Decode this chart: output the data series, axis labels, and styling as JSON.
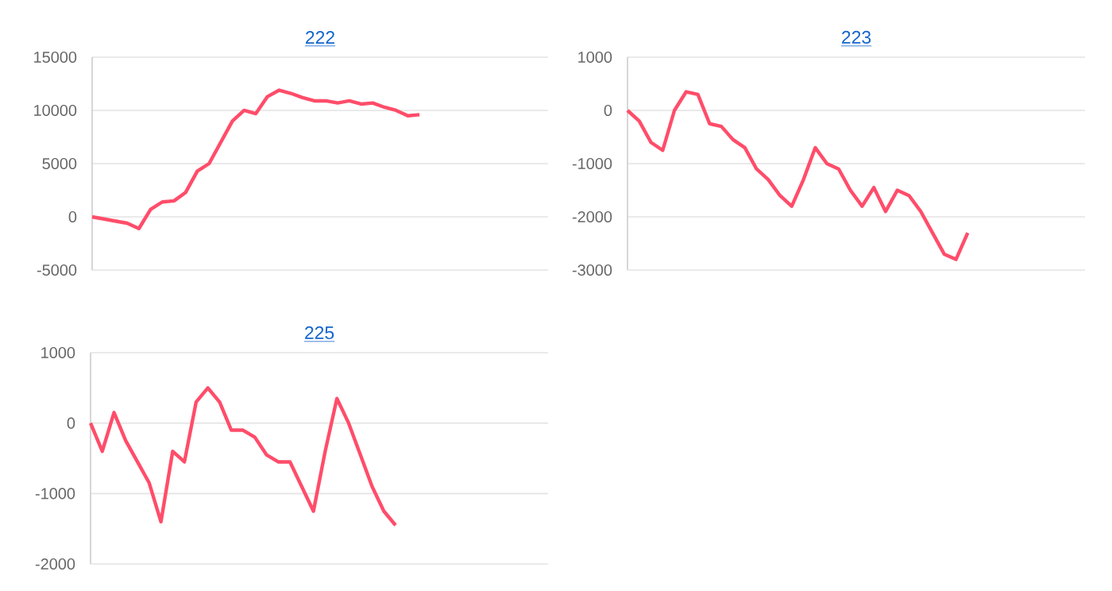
{
  "chart_data": [
    {
      "type": "line",
      "title": "222",
      "grid": "y",
      "tick_labels": "y",
      "ylim": [
        -5000,
        15000
      ],
      "yticks": [
        -5000,
        0,
        5000,
        10000,
        15000
      ],
      "categories": [
        null,
        null,
        null,
        null,
        null,
        null,
        null,
        null,
        null,
        null,
        null,
        null,
        null,
        null,
        null,
        null,
        null,
        null,
        null,
        null,
        null,
        null,
        null,
        null,
        null,
        null,
        null,
        null,
        null,
        null,
        null,
        null,
        null,
        null,
        null,
        null,
        null,
        null,
        null,
        null
      ],
      "series": [
        {
          "color": "#ff4d6a",
          "values": [
            0,
            -200,
            -400,
            -600,
            -1100,
            700,
            1400,
            1500,
            2300,
            4300,
            5000,
            7000,
            9000,
            10000,
            9700,
            11300,
            11900,
            11600,
            11200,
            10900,
            10900,
            10700,
            10900,
            10600,
            10700,
            10300,
            10000,
            9500,
            9600,
            null,
            null,
            null,
            null,
            null,
            null,
            null,
            null,
            null,
            null,
            null
          ]
        }
      ]
    },
    {
      "type": "line",
      "title": "223",
      "grid": "y",
      "tick_labels": "y",
      "ylim": [
        -3000,
        1000
      ],
      "yticks": [
        -3000,
        -2000,
        -1000,
        0,
        1000
      ],
      "categories": [
        null,
        null,
        null,
        null,
        null,
        null,
        null,
        null,
        null,
        null,
        null,
        null,
        null,
        null,
        null,
        null,
        null,
        null,
        null,
        null,
        null,
        null,
        null,
        null,
        null,
        null,
        null,
        null,
        null,
        null,
        null,
        null,
        null,
        null,
        null,
        null,
        null,
        null,
        null,
        null
      ],
      "series": [
        {
          "color": "#ff4d6a",
          "values": [
            0,
            -200,
            -600,
            -750,
            0,
            350,
            300,
            -250,
            -300,
            -550,
            -700,
            -1100,
            -1300,
            -1600,
            -1800,
            -1300,
            -700,
            -1000,
            -1100,
            -1500,
            -1800,
            -1450,
            -1900,
            -1500,
            -1600,
            -1900,
            -2300,
            -2700,
            -2800,
            -2300,
            null,
            null,
            null,
            null,
            null,
            null,
            null,
            null,
            null,
            null
          ]
        }
      ]
    },
    {
      "type": "line",
      "title": "225",
      "grid": "y",
      "tick_labels": "y",
      "ylim": [
        -2000,
        1000
      ],
      "yticks": [
        -2000,
        -1000,
        0,
        1000
      ],
      "categories": [
        null,
        null,
        null,
        null,
        null,
        null,
        null,
        null,
        null,
        null,
        null,
        null,
        null,
        null,
        null,
        null,
        null,
        null,
        null,
        null,
        null,
        null,
        null,
        null,
        null,
        null,
        null,
        null,
        null,
        null,
        null,
        null,
        null,
        null,
        null,
        null,
        null,
        null,
        null,
        null
      ],
      "series": [
        {
          "color": "#ff4d6a",
          "values": [
            0,
            -400,
            150,
            -250,
            -550,
            -850,
            -1400,
            -400,
            -550,
            300,
            500,
            300,
            -100,
            -100,
            -200,
            -450,
            -550,
            -550,
            -900,
            -1250,
            -400,
            350,
            0,
            -450,
            -900,
            -1250,
            -1450,
            null,
            null,
            null,
            null,
            null,
            null,
            null,
            null,
            null,
            null,
            null,
            null,
            null
          ]
        }
      ]
    }
  ]
}
